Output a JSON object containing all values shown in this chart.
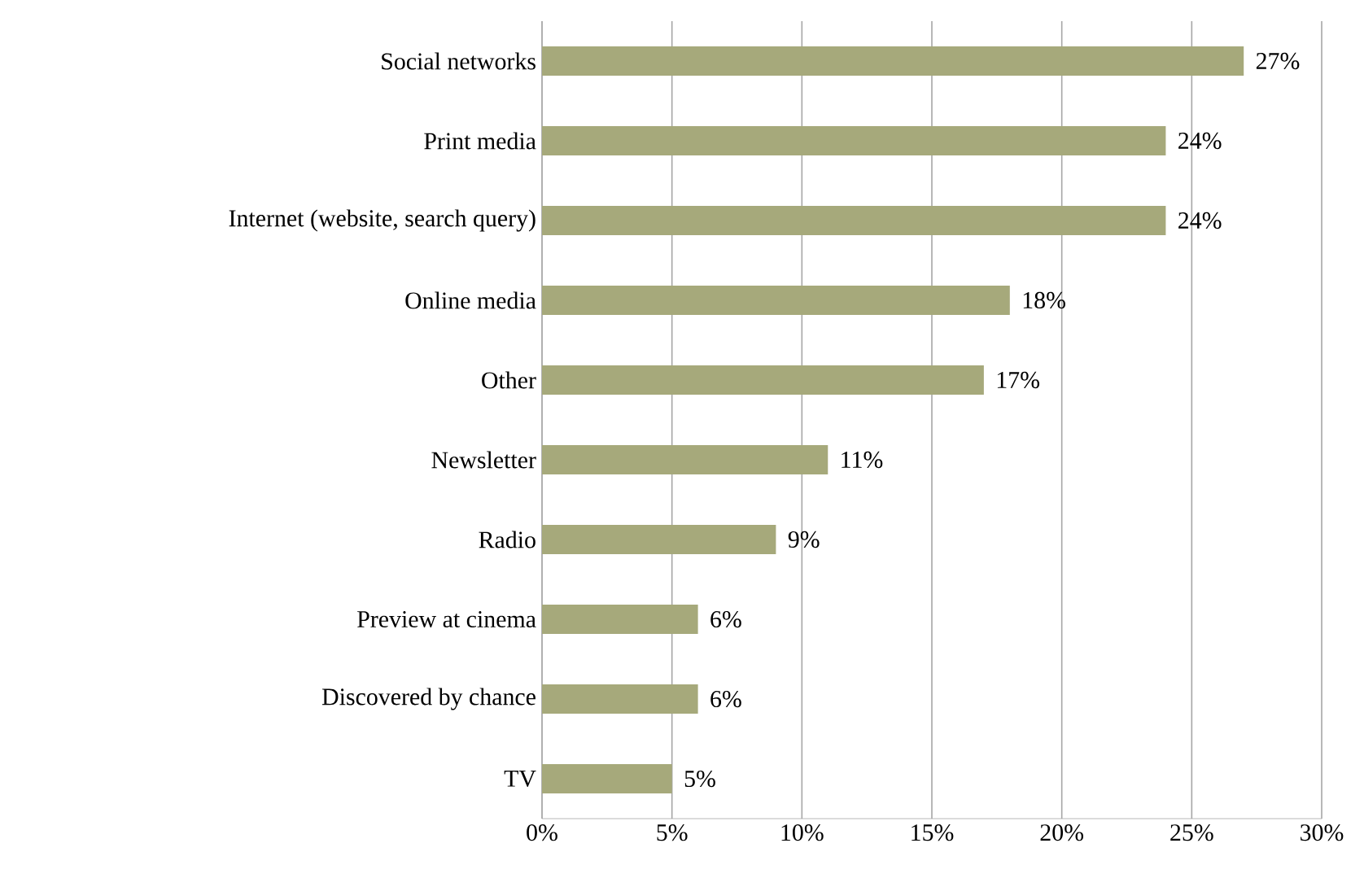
{
  "chart_data": {
    "type": "bar",
    "orientation": "horizontal",
    "categories": [
      "Social networks",
      "Print media",
      "Internet (website, search query)",
      "Online media",
      "Other",
      "Newsletter",
      "Radio",
      "Preview at cinema",
      "Discovered by chance",
      "TV"
    ],
    "values": [
      27,
      24,
      24,
      18,
      17,
      11,
      9,
      6,
      6,
      5
    ],
    "value_labels": [
      "27%",
      "24%",
      "24%",
      "18%",
      "17%",
      "11%",
      "9%",
      "6%",
      "6%",
      "5%"
    ],
    "color": "#a6a97b",
    "xlim": [
      0,
      30
    ],
    "xticks": [
      {
        "value": 0,
        "label": "0%"
      },
      {
        "value": 5,
        "label": "5%"
      },
      {
        "value": 10,
        "label": "10%"
      },
      {
        "value": 15,
        "label": "15%"
      },
      {
        "value": 20,
        "label": "20%"
      },
      {
        "value": 25,
        "label": "25%"
      },
      {
        "value": 30,
        "label": "30%"
      }
    ],
    "grid": "x"
  }
}
